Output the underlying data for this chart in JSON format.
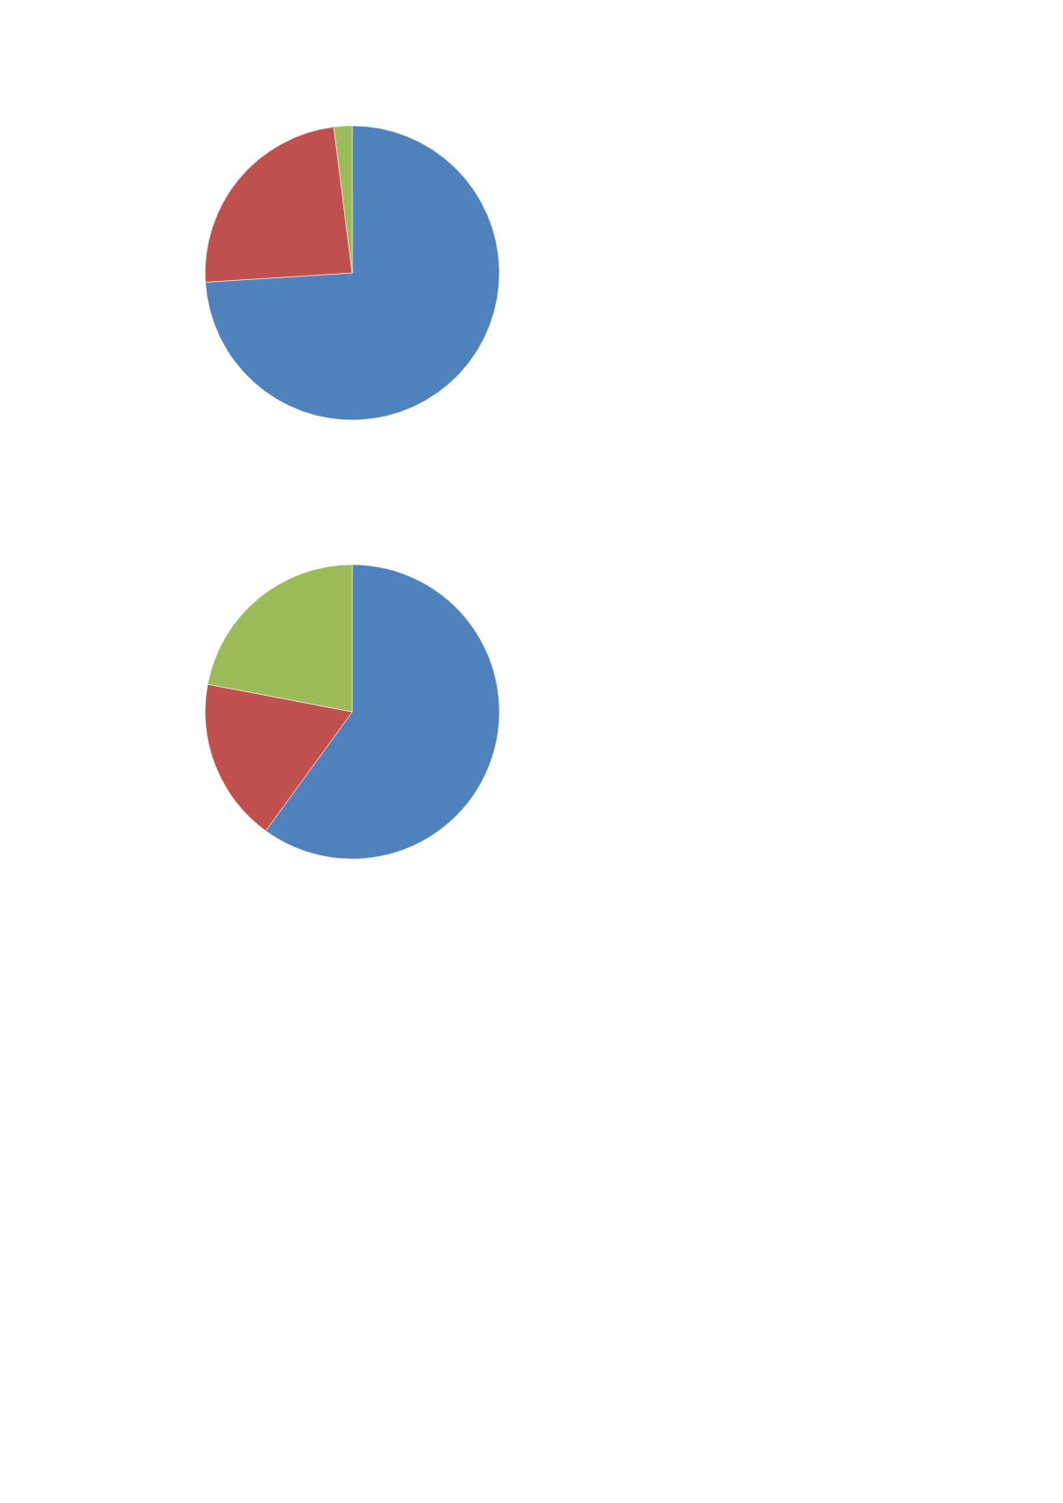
{
  "chart_data": [
    {
      "type": "pie",
      "categories": [
        null,
        null,
        null
      ],
      "values": [
        74,
        24,
        2
      ],
      "colors": [
        "#4f81bd",
        "#c0504d",
        "#9bbb59"
      ]
    },
    {
      "type": "pie",
      "categories": [
        null,
        null,
        null
      ],
      "values": [
        60,
        18,
        22
      ],
      "colors": [
        "#4a7ab5",
        "#b84d48",
        "#94b058"
      ]
    }
  ]
}
